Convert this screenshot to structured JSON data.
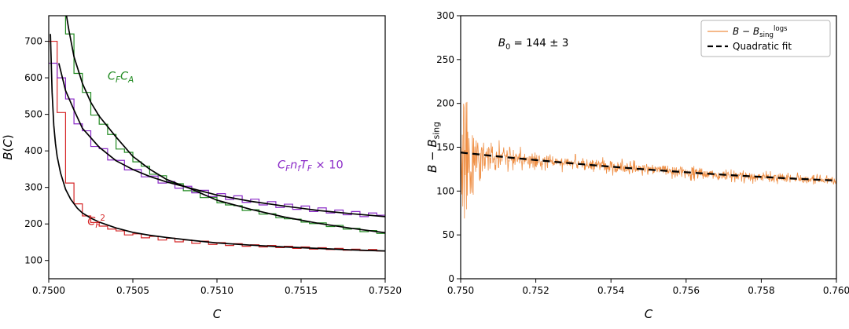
{
  "page": {
    "background": "#ffffff"
  },
  "chart_data": [
    {
      "id": "left",
      "type": "line",
      "xlabel_segments": [
        {
          "t": "C",
          "i": 1
        }
      ],
      "ylabel_segments": [
        {
          "t": "B",
          "i": 1
        },
        {
          "t": "("
        },
        {
          "t": "C",
          "i": 1
        },
        {
          "t": ")"
        }
      ],
      "xlim": [
        0.75,
        0.752
      ],
      "ylim": [
        50,
        770
      ],
      "xticks": [
        {
          "v": 0.75,
          "label": "0.7500"
        },
        {
          "v": 0.7505,
          "label": "0.7505"
        },
        {
          "v": 0.751,
          "label": "0.7510"
        },
        {
          "v": 0.7515,
          "label": "0.7515"
        },
        {
          "v": 0.752,
          "label": "0.7520"
        }
      ],
      "yticks": [
        {
          "v": 100,
          "label": "100"
        },
        {
          "v": 200,
          "label": "200"
        },
        {
          "v": 300,
          "label": "300"
        },
        {
          "v": 400,
          "label": "400"
        },
        {
          "v": 500,
          "label": "500"
        },
        {
          "v": 600,
          "label": "600"
        },
        {
          "v": 700,
          "label": "700"
        }
      ],
      "bin_width": 5e-05,
      "series": [
        {
          "name": "cf2-histogram",
          "style": "hist",
          "color": "#d62728",
          "bin_start": 0.75,
          "lw": 1.2,
          "values": [
            700,
            505,
            312,
            255,
            222,
            204,
            194,
            186,
            181,
            170,
            173,
            162,
            166,
            156,
            161,
            151,
            156,
            147,
            153,
            144,
            149,
            141,
            146,
            139,
            143,
            137,
            141,
            135,
            139,
            133,
            137,
            131,
            135,
            130,
            133,
            128,
            131,
            127,
            130,
            126
          ]
        },
        {
          "name": "cfca-histogram",
          "style": "hist",
          "color": "#228b22",
          "bin_start": 0.75,
          "lw": 1.2,
          "values": [
            990,
            900,
            720,
            612,
            560,
            498,
            473,
            445,
            405,
            396,
            370,
            358,
            336,
            332,
            313,
            310,
            291,
            289,
            272,
            273,
            258,
            252,
            250,
            237,
            239,
            227,
            228,
            217,
            214,
            213,
            205,
            201,
            203,
            193,
            196,
            186,
            188,
            179,
            182,
            174
          ]
        },
        {
          "name": "cfnftf-histogram",
          "style": "hist",
          "color": "#8b2bc8",
          "bin_start": 0.75,
          "lw": 1.2,
          "values": [
            640,
            600,
            542,
            474,
            455,
            412,
            406,
            375,
            374,
            348,
            349,
            329,
            331,
            312,
            316,
            298,
            303,
            285,
            292,
            275,
            283,
            267,
            277,
            259,
            268,
            252,
            261,
            245,
            254,
            240,
            249,
            234,
            244,
            230,
            238,
            225,
            234,
            220,
            230,
            224
          ]
        },
        {
          "name": "cf2-fit-curve",
          "style": "line",
          "color": "#000000",
          "lw": 1.7,
          "x": [
            0.75001,
            0.75002,
            0.75003,
            0.75004,
            0.75005,
            0.75007,
            0.7501,
            0.75013,
            0.75017,
            0.7502,
            0.75025,
            0.7503,
            0.7504,
            0.7505,
            0.7506,
            0.7507,
            0.75085,
            0.751,
            0.7512,
            0.7514,
            0.7516,
            0.7518,
            0.752
          ],
          "y": [
            720,
            560,
            470,
            420,
            385,
            340,
            295,
            268,
            243,
            230,
            216,
            205,
            189,
            177,
            169,
            163,
            155,
            148,
            142,
            137,
            133,
            129,
            126
          ]
        },
        {
          "name": "cfca-fit-curve",
          "style": "line",
          "color": "#000000",
          "lw": 1.7,
          "x": [
            0.75006,
            0.75008,
            0.7501,
            0.75012,
            0.75015,
            0.7502,
            0.75025,
            0.7503,
            0.7504,
            0.7505,
            0.7506,
            0.7507,
            0.75085,
            0.751,
            0.7512,
            0.7514,
            0.7516,
            0.7518,
            0.752
          ],
          "y": [
            900,
            840,
            785,
            730,
            658,
            585,
            533,
            495,
            438,
            385,
            350,
            322,
            295,
            265,
            240,
            219,
            202,
            188,
            176
          ]
        },
        {
          "name": "cfnftf-fit-curve",
          "style": "line",
          "color": "#000000",
          "lw": 1.7,
          "x": [
            0.75006,
            0.7501,
            0.75015,
            0.7502,
            0.7503,
            0.7504,
            0.7505,
            0.7506,
            0.7507,
            0.75085,
            0.751,
            0.7512,
            0.7514,
            0.7516,
            0.7518,
            0.752
          ],
          "y": [
            640,
            565,
            512,
            462,
            410,
            373,
            349,
            330,
            315,
            297,
            279,
            262,
            249,
            237,
            228,
            220
          ]
        }
      ],
      "annotations": [
        {
          "name": "label-cfca",
          "color": "#228b22",
          "x": 0.75035,
          "y": 595,
          "size": 14.5,
          "segments": [
            {
              "t": "C",
              "i": 1
            },
            {
              "t": "F",
              "m": "sub",
              "i": 1
            },
            {
              "t": "C",
              "i": 1
            },
            {
              "t": "A",
              "m": "sub",
              "i": 1
            }
          ]
        },
        {
          "name": "label-cfnftf",
          "color": "#8b2bc8",
          "x": 0.75136,
          "y": 352,
          "size": 14.5,
          "segments": [
            {
              "t": "C",
              "i": 1
            },
            {
              "t": "F",
              "m": "sub",
              "i": 1
            },
            {
              "t": "n",
              "i": 1
            },
            {
              "t": "f",
              "m": "sub",
              "i": 1
            },
            {
              "t": "T",
              "i": 1
            },
            {
              "t": "F",
              "m": "sub",
              "i": 1
            },
            {
              "t": " × 10"
            }
          ]
        },
        {
          "name": "label-cf2",
          "color": "#d62728",
          "x": 0.75023,
          "y": 197,
          "size": 14.5,
          "segments": [
            {
              "t": "C",
              "i": 1
            },
            {
              "t": "F",
              "m": "sub",
              "i": 1
            },
            {
              "t": "2",
              "m": "sup"
            }
          ]
        }
      ]
    },
    {
      "id": "right",
      "type": "line",
      "xlabel_segments": [
        {
          "t": "C",
          "i": 1
        }
      ],
      "ylabel_segments": [
        {
          "t": "B",
          "i": 1
        },
        {
          "t": " − "
        },
        {
          "t": "B",
          "i": 1
        },
        {
          "t": "sing",
          "m": "sub"
        }
      ],
      "xlim": [
        0.75,
        0.76
      ],
      "ylim": [
        0,
        300
      ],
      "xticks": [
        {
          "v": 0.75,
          "label": "0.750"
        },
        {
          "v": 0.752,
          "label": "0.752"
        },
        {
          "v": 0.754,
          "label": "0.754"
        },
        {
          "v": 0.756,
          "label": "0.756"
        },
        {
          "v": 0.758,
          "label": "0.758"
        },
        {
          "v": 0.76,
          "label": "0.760"
        }
      ],
      "yticks": [
        {
          "v": 0,
          "label": "0"
        },
        {
          "v": 50,
          "label": "50"
        },
        {
          "v": 100,
          "label": "100"
        },
        {
          "v": 150,
          "label": "150"
        },
        {
          "v": 200,
          "label": "200"
        },
        {
          "v": 250,
          "label": "250"
        },
        {
          "v": 300,
          "label": "300"
        }
      ],
      "fit": {
        "B0": 144,
        "B0_error": 3,
        "c1": -4600,
        "c2": 140000,
        "x0": 0.75,
        "values_at_ticks": {
          "x": [
            0.75,
            0.752,
            0.754,
            0.756,
            0.758,
            0.76
          ],
          "y": [
            144,
            135.4,
            127.8,
            121.4,
            116.2,
            112
          ]
        }
      },
      "series": [
        {
          "name": "b-minus-bsing-logs-data",
          "style": "noise",
          "color": "#ef8f45",
          "n": 900,
          "seed": 20231,
          "base": 4.5,
          "spike": 42,
          "decay": 0.0004,
          "lw": 0.8
        },
        {
          "name": "quadratic-fit-curve",
          "style": "fitcurve",
          "color": "#000000",
          "lw": 2.3,
          "dash": true
        }
      ],
      "annotations": [
        {
          "name": "b0-annotation",
          "color": "#000000",
          "x": 0.751,
          "y": 265,
          "size": 13.5,
          "segments": [
            {
              "t": "B",
              "i": 1
            },
            {
              "t": "0",
              "m": "sub"
            },
            {
              "t": " = 144 ± 3"
            }
          ]
        }
      ],
      "legend": {
        "items": [
          {
            "name": "legend-data-series",
            "color": "#ef8f45",
            "dash": false,
            "segments": [
              {
                "t": "B",
                "i": 1
              },
              {
                "t": " − "
              },
              {
                "t": "B",
                "i": 1
              },
              {
                "t": "sing",
                "m": "sub"
              },
              {
                "t": "logs",
                "m": "sup"
              }
            ]
          },
          {
            "name": "legend-quadratic-fit",
            "color": "#000000",
            "dash": true,
            "segments": [
              {
                "t": "Quadratic fit"
              }
            ]
          }
        ]
      }
    }
  ]
}
